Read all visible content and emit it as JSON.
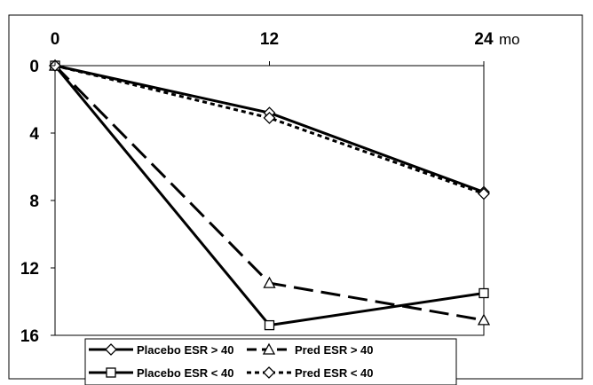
{
  "chart_data": {
    "type": "line",
    "x": [
      0,
      12,
      24
    ],
    "x_tick_labels": [
      "0",
      "12",
      "24"
    ],
    "x_unit": "mo",
    "y_ticks": [
      0,
      4,
      8,
      12,
      16
    ],
    "y_tick_labels": [
      "0",
      "4",
      "8",
      "12",
      "16"
    ],
    "ylim": [
      0,
      16
    ],
    "y_inverted": true,
    "x_axis_position": "top",
    "legend_position": "bottom",
    "grid": false,
    "series": [
      {
        "name": "Placebo ESR > 40",
        "values": [
          0,
          2.8,
          7.5
        ],
        "line": "solid",
        "marker": "diamond",
        "color": "#000000"
      },
      {
        "name": "Pred ESR > 40",
        "values": [
          0,
          12.9,
          15.1
        ],
        "line": "dashed",
        "marker": "triangle",
        "color": "#000000"
      },
      {
        "name": "Placebo ESR < 40",
        "values": [
          0,
          15.4,
          13.5
        ],
        "line": "solid",
        "marker": "square",
        "color": "#000000"
      },
      {
        "name": "Pred ESR < 40",
        "values": [
          0,
          3.1,
          7.6
        ],
        "line": "dotted",
        "marker": "diamond",
        "color": "#000000"
      }
    ]
  }
}
